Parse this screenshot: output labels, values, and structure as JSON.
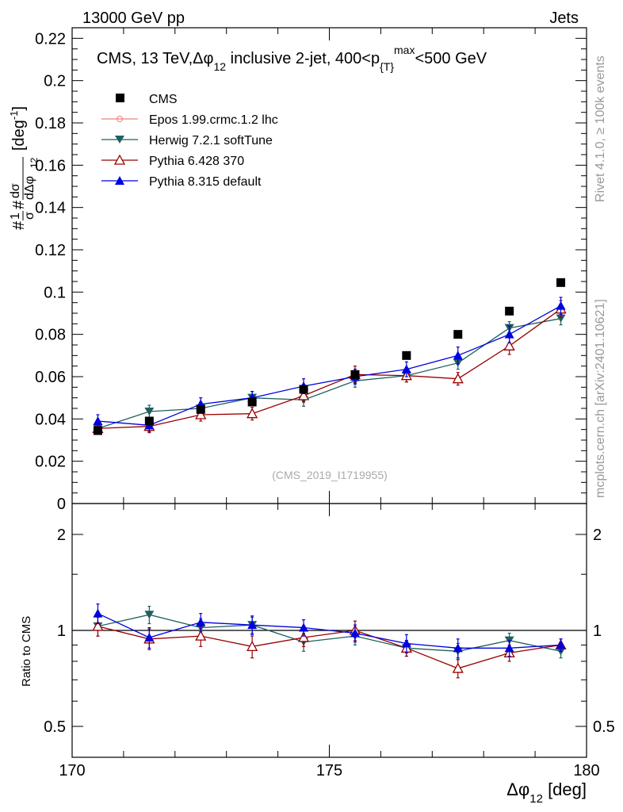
{
  "header": {
    "left": "13000 GeV pp",
    "right": "Jets",
    "side_top": "Rivet 4.1.0, ≥ 100k events",
    "side_bottom": "mcplots.cern.ch [arXiv:2401.10621]"
  },
  "title": {
    "main": "CMS, 13 TeV,Δφ",
    "main_sub": "12",
    "rest": " inclusive 2-jet, 400<p",
    "rest_sub": "{T}",
    "rest_sup": "max",
    "tail": "<500 GeV"
  },
  "watermark": "(CMS_2019_I1719955)",
  "ylabel": {
    "hash1": "#",
    "one": "1",
    "sigma": "σ",
    "hash2": "#",
    "dsigma": "dσ",
    "dphi": "dΔφ",
    "dphi_sub": "12",
    "unit": "[deg",
    "unit_sup": "-1",
    "unit_close": "]"
  },
  "ratio_ylabel": "Ratio to CMS",
  "xlabel": {
    "main": "Δφ",
    "sub": "12",
    "unit": " [deg]"
  },
  "chart_data": {
    "type": "scatter",
    "x": [
      170.5,
      171.5,
      172.5,
      173.5,
      174.5,
      175.5,
      176.5,
      177.5,
      178.5,
      179.5
    ],
    "xlim": [
      170,
      180
    ],
    "ylim": [
      0,
      0.225
    ],
    "x_ticks": [
      "170",
      "175",
      "180"
    ],
    "x_tick_values": [
      170,
      175,
      180
    ],
    "y_ticks": [
      "0",
      "0.02",
      "0.04",
      "0.06",
      "0.08",
      "0.1",
      "0.12",
      "0.14",
      "0.16",
      "0.18",
      "0.2",
      "0.22"
    ],
    "y_tick_values": [
      0,
      0.02,
      0.04,
      0.06,
      0.08,
      0.1,
      0.12,
      0.14,
      0.16,
      0.18,
      0.2,
      0.22
    ],
    "ratio_ylim": [
      0.4,
      2.5
    ],
    "ratio_ticks": [
      "0.5",
      "1",
      "2"
    ],
    "ratio_tick_values": [
      0.5,
      1,
      2
    ],
    "series": [
      {
        "name": "CMS",
        "marker": "square",
        "color": "#000000",
        "values": [
          0.0345,
          0.039,
          0.0445,
          0.048,
          0.054,
          0.061,
          0.07,
          0.08,
          0.091,
          0.1045
        ],
        "errors": [
          0.001,
          0.001,
          0.001,
          0.001,
          0.001,
          0.001,
          0.001,
          0.001,
          0.001,
          0.001
        ]
      },
      {
        "name": "Epos 1.99.crmc.1.2 lhc",
        "marker": "cross-open",
        "color": "#f08080",
        "values": [],
        "errors": []
      },
      {
        "name": "Herwig 7.2.1 softTune",
        "marker": "triangle-down",
        "color": "#1f5f5f",
        "values": [
          0.0355,
          0.0435,
          0.045,
          0.05,
          0.049,
          0.058,
          0.0605,
          0.0665,
          0.083,
          0.0875
        ],
        "errors": [
          0.0025,
          0.003,
          0.003,
          0.003,
          0.003,
          0.003,
          0.003,
          0.003,
          0.003,
          0.003
        ]
      },
      {
        "name": "Pythia 6.428 370",
        "marker": "triangle-open",
        "color": "#990000",
        "values": [
          0.0355,
          0.0365,
          0.042,
          0.0425,
          0.051,
          0.061,
          0.0605,
          0.059,
          0.0745,
          0.092
        ],
        "errors": [
          0.0025,
          0.003,
          0.003,
          0.003,
          0.003,
          0.004,
          0.003,
          0.003,
          0.004,
          0.004
        ]
      },
      {
        "name": "Pythia 8.315 default",
        "marker": "triangle-up",
        "color": "#0000e0",
        "values": [
          0.039,
          0.037,
          0.047,
          0.05,
          0.0555,
          0.06,
          0.0635,
          0.07,
          0.08,
          0.0935
        ],
        "errors": [
          0.003,
          0.003,
          0.003,
          0.003,
          0.0035,
          0.0035,
          0.0035,
          0.004,
          0.004,
          0.004
        ]
      }
    ],
    "ratio_series": [
      {
        "name": "Herwig 7.2.1 softTune",
        "values": [
          1.03,
          1.12,
          1.02,
          1.04,
          0.92,
          0.96,
          0.88,
          0.86,
          0.93,
          0.86
        ],
        "errors": [
          0.07,
          0.07,
          0.07,
          0.06,
          0.06,
          0.06,
          0.05,
          0.05,
          0.05,
          0.04
        ]
      },
      {
        "name": "Pythia 6.428 370",
        "values": [
          1.03,
          0.94,
          0.96,
          0.89,
          0.95,
          1.0,
          0.88,
          0.76,
          0.85,
          0.9
        ],
        "errors": [
          0.07,
          0.07,
          0.07,
          0.07,
          0.06,
          0.07,
          0.05,
          0.05,
          0.05,
          0.04
        ]
      },
      {
        "name": "Pythia 8.315 default",
        "values": [
          1.13,
          0.95,
          1.06,
          1.04,
          1.02,
          0.98,
          0.91,
          0.88,
          0.88,
          0.9
        ],
        "errors": [
          0.08,
          0.07,
          0.07,
          0.07,
          0.06,
          0.06,
          0.06,
          0.06,
          0.05,
          0.04
        ]
      }
    ]
  }
}
